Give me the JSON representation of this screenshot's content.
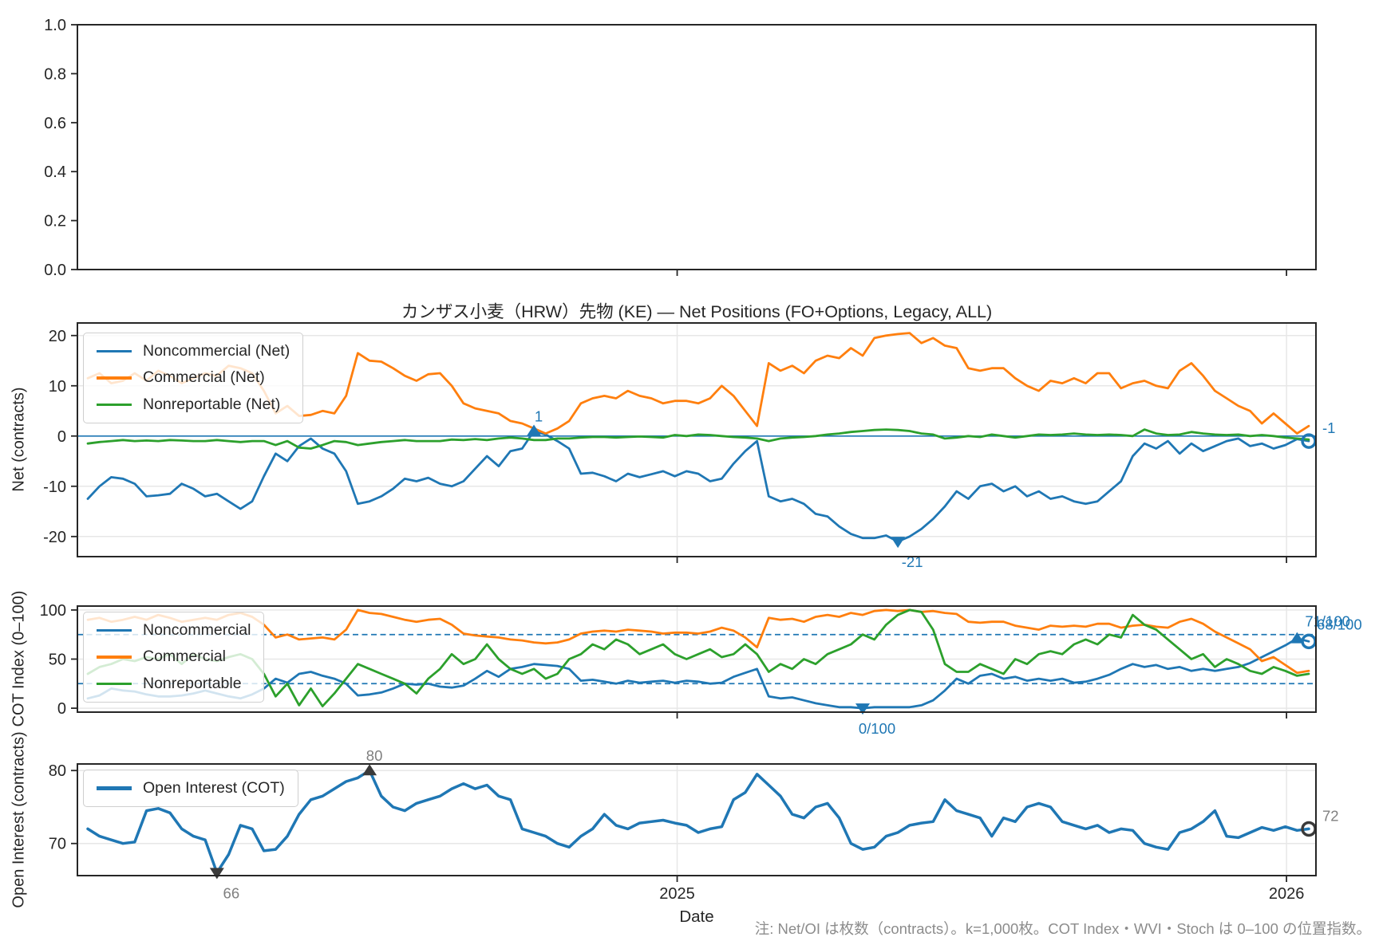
{
  "figure": {
    "title": "カンザス小麦（HRW）先物 (KE) — Net Positions (FO+Options, Legacy, ALL)",
    "note": "注: Net/OI は枚数（contracts）。k=1,000枚。COT Index・WVI・Stoch は 0–100 の位置指数。"
  },
  "x_axis": {
    "label": "Date",
    "n_points": 105,
    "ticks": [
      {
        "label": "2025",
        "i": 50.2
      },
      {
        "label": "2026",
        "i": 102.1
      }
    ]
  },
  "colors": {
    "noncommercial": "#1f77b4",
    "commercial": "#ff7f0e",
    "nonreportable": "#2ca02c",
    "annotation_blue": "#1f77b4",
    "annotation_gray": "#7f7f7f",
    "marker_dark": "#3a3a3a",
    "spine": "#262626",
    "grid": "#e7e7e7"
  },
  "chart_data": [
    {
      "type": "line",
      "name": "empty-panel",
      "ylabel": "",
      "ylim": [
        0,
        1
      ],
      "grid": false,
      "yticks": [
        {
          "v": 1.0,
          "label": "1.0"
        },
        {
          "v": 0.8,
          "label": "0.8"
        },
        {
          "v": 0.6,
          "label": "0.6"
        },
        {
          "v": 0.4,
          "label": "0.4"
        },
        {
          "v": 0.2,
          "label": "0.2"
        },
        {
          "v": 0.0,
          "label": "0.0"
        }
      ],
      "series": [],
      "annotations": []
    },
    {
      "type": "line",
      "name": "net-positions",
      "title": "カンザス小麦（HRW）先物 (KE) — Net Positions (FO+Options, Legacy, ALL)",
      "ylabel": "Net (contracts)",
      "ylim": [
        -24,
        22.5
      ],
      "grid": true,
      "axhline": 0,
      "line_width": 2.8,
      "legend_position": "upper-left",
      "yticks": [
        {
          "v": 20,
          "label": "20"
        },
        {
          "v": 10,
          "label": "10"
        },
        {
          "v": 0,
          "label": "0"
        },
        {
          "v": -10,
          "label": "-10"
        },
        {
          "v": -20,
          "label": "-20"
        }
      ],
      "series": [
        {
          "label": "Noncommercial (Net)",
          "color": "#1f77b4",
          "values": [
            -12.5,
            -10,
            -8.2,
            -8.5,
            -9.5,
            -12,
            -11.8,
            -11.5,
            -9.5,
            -10.5,
            -12,
            -11.5,
            -13,
            -14.5,
            -13,
            -8,
            -3.5,
            -5,
            -2,
            -0.5,
            -2.5,
            -3.5,
            -7,
            -13.5,
            -13,
            -12,
            -10.5,
            -8.5,
            -9,
            -8.3,
            -9.5,
            -10,
            -9,
            -6.5,
            -4,
            -6,
            -3,
            -2.5,
            1,
            0.3,
            -1,
            -2.5,
            -7.5,
            -7.3,
            -8,
            -9,
            -7.5,
            -8.2,
            -7.6,
            -7,
            -8,
            -7,
            -7.5,
            -9,
            -8.5,
            -5.5,
            -3,
            -1,
            -12,
            -13,
            -12.5,
            -13.5,
            -15.5,
            -16,
            -18,
            -19.5,
            -20.3,
            -20.3,
            -19.8,
            -21,
            -20,
            -18.5,
            -16.5,
            -14,
            -11,
            -12.5,
            -10,
            -9.5,
            -11,
            -10,
            -12,
            -11,
            -12.5,
            -12,
            -13,
            -13.5,
            -13,
            -11,
            -9,
            -4,
            -1.5,
            -2.5,
            -1,
            -3.5,
            -1.5,
            -3,
            -2,
            -1,
            -0.5,
            -2,
            -1.5,
            -2.5,
            -1.8,
            -0.6,
            -1
          ]
        },
        {
          "label": "Commercial (Net)",
          "color": "#ff7f0e",
          "values": [
            11.5,
            12.5,
            10.5,
            11,
            12.5,
            11,
            13,
            12,
            10.5,
            11.5,
            12.5,
            12,
            14,
            13.5,
            12.5,
            9,
            4.5,
            6,
            4,
            4.2,
            5,
            4.5,
            8,
            16.5,
            15,
            14.8,
            13.5,
            12,
            11,
            12.3,
            12.5,
            10,
            6.5,
            5.5,
            5,
            4.5,
            3,
            2.5,
            1.5,
            0.5,
            1.5,
            3,
            6.5,
            7.5,
            8,
            7.5,
            9,
            8,
            7.5,
            6.5,
            7,
            7,
            6.5,
            7.5,
            10,
            8,
            5,
            2,
            14.5,
            13,
            14,
            12.5,
            15,
            16,
            15.5,
            17.5,
            16,
            19.5,
            20,
            20.3,
            20.5,
            18.5,
            19.5,
            18,
            17.5,
            13.5,
            13,
            13.5,
            13.5,
            11.5,
            10,
            9,
            11,
            10.5,
            11.5,
            10.5,
            12.5,
            12.5,
            9.5,
            10.5,
            11,
            10,
            9.5,
            13,
            14.5,
            12,
            9,
            7.5,
            6,
            5,
            2.5,
            4.5,
            2.5,
            0.5,
            2
          ]
        },
        {
          "label": "Nonreportable (Net)",
          "color": "#2ca02c",
          "values": [
            -1.5,
            -1.2,
            -1,
            -0.8,
            -1,
            -0.9,
            -1,
            -0.8,
            -0.9,
            -1,
            -1,
            -0.8,
            -1,
            -1.2,
            -1,
            -1,
            -1.8,
            -1,
            -2.3,
            -2.5,
            -1.8,
            -1,
            -1.2,
            -1.8,
            -1.5,
            -1.2,
            -1,
            -0.8,
            -1,
            -1,
            -1,
            -0.7,
            -0.8,
            -0.6,
            -0.8,
            -0.5,
            -0.3,
            -0.5,
            -0.8,
            -0.8,
            -0.5,
            -0.5,
            -0.3,
            -0.2,
            -0.2,
            -0.3,
            -0.2,
            -0.1,
            -0.2,
            -0.3,
            0.2,
            0,
            0.3,
            0.2,
            0,
            -0.2,
            -0.3,
            -0.5,
            -1,
            -0.5,
            -0.3,
            -0.2,
            0,
            0.3,
            0.5,
            0.8,
            1,
            1.2,
            1.3,
            1.2,
            1,
            0.5,
            0.3,
            -0.5,
            -0.3,
            0,
            -0.2,
            0.3,
            0,
            -0.3,
            0,
            0.3,
            0.2,
            0.3,
            0.5,
            0.3,
            0.2,
            0.3,
            0.2,
            0,
            1.3,
            0.5,
            0.2,
            0.3,
            0.8,
            0.5,
            0.3,
            0.2,
            0.3,
            0,
            0.2,
            0,
            -0.3,
            -0.5,
            -0.7
          ]
        }
      ],
      "annotations": [
        {
          "text": "1",
          "series": 0,
          "i": 38,
          "marker": "triangle-up",
          "placement": "above",
          "color": "#1f77b4",
          "marker_color": "#1f77b4"
        },
        {
          "text": "-21",
          "series": 0,
          "i": 69,
          "marker": "triangle-down",
          "placement": "below",
          "color": "#1f77b4",
          "marker_color": "#1f77b4"
        },
        {
          "text": "-1",
          "series": 0,
          "i": 104,
          "marker": "circle-open",
          "placement": "right",
          "color": "#1f77b4",
          "marker_color": "#1f77b4"
        }
      ]
    },
    {
      "type": "line",
      "name": "cot-index",
      "ylabel": "COT Index (0–100)",
      "ylim": [
        -4,
        104
      ],
      "grid": true,
      "dashed_hlines": [
        75,
        25
      ],
      "line_width": 2.8,
      "legend_position": "upper-left",
      "yticks": [
        {
          "v": 100,
          "label": "100"
        },
        {
          "v": 50,
          "label": "50"
        },
        {
          "v": 0,
          "label": "0"
        }
      ],
      "series": [
        {
          "label": "Noncommercial",
          "color": "#1f77b4",
          "values": [
            10,
            13,
            20,
            18,
            17,
            14,
            12,
            12,
            13,
            15,
            18,
            15,
            12,
            10,
            14,
            20,
            30,
            26,
            35,
            37,
            33,
            30,
            25,
            13,
            14,
            16,
            20,
            25,
            24,
            25,
            22,
            21,
            23,
            30,
            38,
            32,
            40,
            42,
            45,
            44,
            43,
            40,
            28,
            29,
            27,
            25,
            28,
            26,
            27,
            28,
            26,
            28,
            27,
            25,
            26,
            32,
            36,
            40,
            12,
            10,
            11,
            8,
            5,
            3,
            1,
            1,
            0,
            1,
            1,
            1,
            1,
            3,
            8,
            18,
            30,
            25,
            33,
            35,
            30,
            32,
            28,
            30,
            28,
            30,
            26,
            27,
            30,
            34,
            40,
            45,
            42,
            44,
            40,
            42,
            38,
            40,
            38,
            40,
            42,
            46,
            52,
            58,
            64,
            71,
            68
          ]
        },
        {
          "label": "Commercial",
          "color": "#ff7f0e",
          "values": [
            90,
            92,
            88,
            90,
            93,
            90,
            95,
            92,
            88,
            90,
            92,
            90,
            95,
            97,
            93,
            85,
            72,
            75,
            70,
            71,
            72,
            70,
            80,
            100,
            97,
            96,
            93,
            90,
            88,
            90,
            91,
            85,
            76,
            74,
            73,
            72,
            70,
            69,
            67,
            66,
            67,
            70,
            76,
            78,
            79,
            78,
            80,
            79,
            78,
            76,
            77,
            77,
            76,
            78,
            82,
            79,
            72,
            62,
            92,
            90,
            91,
            88,
            93,
            95,
            93,
            97,
            95,
            99,
            100,
            99,
            100,
            98,
            99,
            97,
            96,
            88,
            87,
            88,
            88,
            84,
            82,
            80,
            84,
            83,
            84,
            83,
            86,
            86,
            82,
            84,
            85,
            83,
            82,
            88,
            91,
            86,
            78,
            72,
            66,
            60,
            48,
            52,
            44,
            36,
            38
          ]
        },
        {
          "label": "Nonreportable",
          "color": "#2ca02c",
          "values": [
            35,
            42,
            45,
            50,
            48,
            52,
            50,
            55,
            45,
            55,
            50,
            48,
            52,
            55,
            50,
            35,
            12,
            25,
            3,
            20,
            2,
            15,
            30,
            45,
            40,
            35,
            30,
            25,
            15,
            30,
            40,
            55,
            45,
            50,
            65,
            50,
            40,
            35,
            40,
            30,
            35,
            50,
            55,
            65,
            60,
            70,
            65,
            55,
            60,
            65,
            55,
            50,
            55,
            60,
            52,
            55,
            65,
            55,
            37,
            45,
            40,
            50,
            45,
            55,
            60,
            65,
            75,
            70,
            85,
            95,
            100,
            98,
            80,
            45,
            37,
            37,
            45,
            40,
            35,
            50,
            45,
            55,
            58,
            55,
            65,
            70,
            65,
            75,
            72,
            95,
            85,
            80,
            70,
            60,
            50,
            55,
            42,
            50,
            45,
            38,
            35,
            42,
            38,
            33,
            35
          ]
        }
      ],
      "annotations": [
        {
          "text": "0/100",
          "series": 0,
          "i": 66,
          "marker": "triangle-down",
          "placement": "below",
          "color": "#1f77b4",
          "marker_color": "#1f77b4"
        },
        {
          "text": "71/100",
          "series": 0,
          "i": 103,
          "marker": "triangle-up",
          "placement": "right-up",
          "color": "#1f77b4",
          "marker_color": "#1f77b4"
        },
        {
          "text": "68/100",
          "series": 0,
          "i": 104,
          "marker": "circle-open",
          "placement": "right-up",
          "color": "#1f77b4",
          "marker_color": "#1f77b4"
        }
      ]
    },
    {
      "type": "line",
      "name": "open-interest",
      "ylabel": "Open Interest (contracts)",
      "ylim": [
        65.6,
        80.9
      ],
      "grid": true,
      "line_width": 3.5,
      "legend_position": "upper-left",
      "yticks": [
        {
          "v": 80,
          "label": "80"
        },
        {
          "v": 70,
          "label": "70"
        }
      ],
      "series": [
        {
          "label": "Open Interest (COT)",
          "color": "#1f77b4",
          "values": [
            72,
            71,
            70.5,
            70,
            70.2,
            74.5,
            74.8,
            74.2,
            72,
            71,
            70.5,
            66,
            68.5,
            72.5,
            72,
            69,
            69.2,
            71,
            74,
            76,
            76.5,
            77.5,
            78.5,
            79,
            80,
            76.5,
            75,
            74.5,
            75.5,
            76,
            76.5,
            77.5,
            78.2,
            77.5,
            78,
            76.5,
            76,
            72,
            71.5,
            71,
            70,
            69.5,
            71,
            72,
            74,
            72.5,
            72,
            72.8,
            73,
            73.2,
            72.8,
            72.5,
            71.5,
            72,
            72.3,
            76,
            77,
            79.5,
            78,
            76.5,
            74,
            73.5,
            75,
            75.5,
            73.5,
            70,
            69.2,
            69.5,
            71,
            71.5,
            72.5,
            72.8,
            73,
            76,
            74.5,
            74,
            73.5,
            71,
            73.5,
            73,
            75,
            75.5,
            75,
            73,
            72.5,
            72,
            72.5,
            71.5,
            72,
            71.8,
            70,
            69.5,
            69.2,
            71.5,
            72,
            73,
            74.5,
            71,
            70.8,
            71.5,
            72.2,
            71.8,
            72.3,
            71.8,
            72
          ]
        }
      ],
      "annotations": [
        {
          "text": "80",
          "series": 0,
          "i": 24,
          "marker": "triangle-up",
          "placement": "above",
          "color": "#7f7f7f",
          "marker_color": "#3a3a3a"
        },
        {
          "text": "66",
          "series": 0,
          "i": 11,
          "marker": "triangle-down",
          "placement": "below",
          "color": "#7f7f7f",
          "marker_color": "#3a3a3a"
        },
        {
          "text": "72",
          "series": 0,
          "i": 104,
          "marker": "circle-open",
          "placement": "right",
          "color": "#7f7f7f",
          "marker_color": "#3a3a3a"
        }
      ]
    }
  ]
}
